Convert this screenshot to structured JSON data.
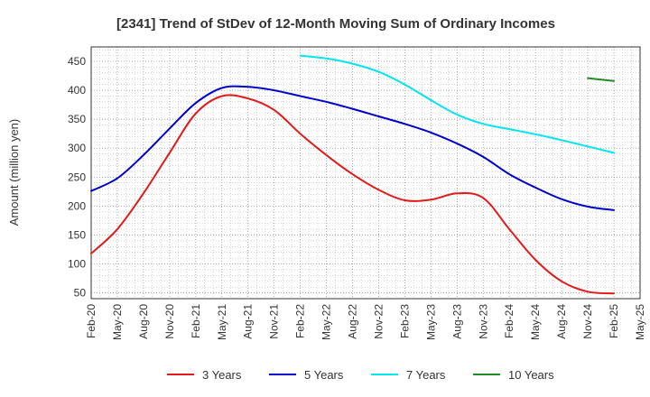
{
  "chart_data": {
    "type": "line",
    "title": "[2341]  Trend of StDev of 12-Month Moving Sum of Ordinary Incomes",
    "ylabel": "Amount (million yen)",
    "xlabel": "",
    "ylim": [
      40,
      475
    ],
    "yticks": [
      50,
      100,
      150,
      200,
      250,
      300,
      350,
      400,
      450
    ],
    "x_categories": [
      "Feb-20",
      "May-20",
      "Aug-20",
      "Nov-20",
      "Feb-21",
      "May-21",
      "Aug-21",
      "Nov-21",
      "Feb-22",
      "May-22",
      "Aug-22",
      "Nov-22",
      "Feb-23",
      "May-23",
      "Aug-23",
      "Nov-23",
      "Feb-24",
      "May-24",
      "Aug-24",
      "Nov-24",
      "Feb-25",
      "May-25"
    ],
    "grid": true,
    "legend_position": "bottom",
    "series": [
      {
        "name": "3 Years",
        "color": "#e31a1c",
        "values": [
          118,
          160,
          222,
          292,
          360,
          390,
          386,
          366,
          325,
          288,
          255,
          228,
          210,
          211,
          222,
          214,
          160,
          107,
          70,
          52,
          49,
          null
        ]
      },
      {
        "name": "5 Years",
        "color": "#0000cc",
        "values": [
          226,
          248,
          288,
          334,
          378,
          404,
          406,
          400,
          390,
          380,
          368,
          355,
          342,
          327,
          308,
          285,
          255,
          232,
          212,
          199,
          193,
          null
        ]
      },
      {
        "name": "7 Years",
        "color": "#00e5ee",
        "values": [
          null,
          null,
          null,
          null,
          null,
          null,
          null,
          null,
          460,
          455,
          446,
          432,
          410,
          383,
          358,
          342,
          333,
          324,
          314,
          303,
          292,
          null
        ]
      },
      {
        "name": "10 Years",
        "color": "#228b22",
        "values": [
          null,
          null,
          null,
          null,
          null,
          null,
          null,
          null,
          null,
          null,
          null,
          null,
          null,
          null,
          null,
          null,
          null,
          null,
          null,
          421,
          416,
          null
        ]
      }
    ]
  }
}
